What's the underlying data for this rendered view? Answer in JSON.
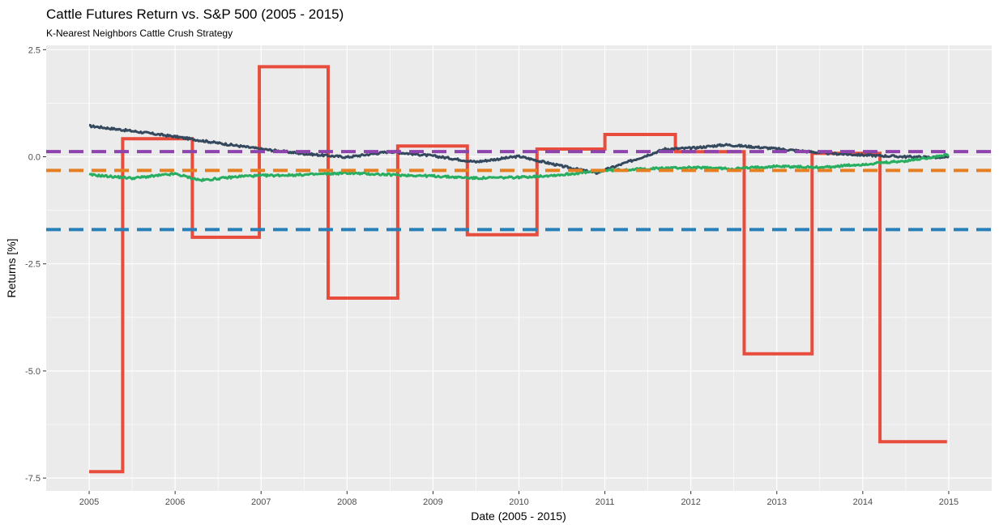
{
  "chart_data": {
    "type": "line",
    "title": "Cattle Futures Return vs. S&P 500 (2005 - 2015)",
    "subtitle": "K-Nearest Neighbors Cattle Crush Strategy",
    "xlabel": "Date (2005 - 2015)",
    "ylabel": "Returns [%]",
    "xlim": [
      2004.5,
      2015.5
    ],
    "ylim": [
      -7.8,
      2.6
    ],
    "x_ticks": [
      2005,
      2006,
      2007,
      2008,
      2009,
      2010,
      2011,
      2012,
      2013,
      2014,
      2015
    ],
    "x_tick_labels": [
      "2005",
      "2006",
      "2007",
      "2008",
      "2009",
      "2010",
      "2011",
      "2012",
      "2013",
      "2014",
      "2015"
    ],
    "y_ticks": [
      2.5,
      0.0,
      -2.5,
      -5.0,
      -7.5
    ],
    "y_tick_labels": [
      "2.5",
      "0.0",
      "-2.5",
      "-5.0",
      "-7.5"
    ],
    "grid": true,
    "legend": "none",
    "colors": {
      "panel_background": "#ebebeb",
      "grid": "#ffffff",
      "strategy": "#e74c3c",
      "dark_series": "#34495e",
      "green_series": "#27ae60",
      "purple_mean": "#8e44ad",
      "orange_mean": "#e67e22",
      "blue_mean": "#2980b9"
    },
    "series": [
      {
        "key": "strategy",
        "style": "step",
        "x": [
          2005.0,
          2005.39,
          2005.39,
          2006.2,
          2006.2,
          2006.98,
          2006.98,
          2007.78,
          2007.78,
          2008.59,
          2008.59,
          2009.4,
          2009.4,
          2010.21,
          2010.21,
          2011.0,
          2011.0,
          2011.82,
          2011.82,
          2012.62,
          2012.62,
          2013.41,
          2013.41,
          2014.2,
          2014.2,
          2014.98
        ],
        "values": [
          -7.35,
          -7.35,
          0.42,
          0.42,
          -1.88,
          -1.88,
          2.1,
          2.1,
          -3.3,
          -3.3,
          0.25,
          0.25,
          -1.82,
          -1.82,
          0.18,
          0.18,
          0.52,
          0.52,
          0.12,
          0.12,
          -4.6,
          -4.6,
          0.08,
          0.08,
          -6.65,
          -6.65
        ]
      },
      {
        "key": "dark_series",
        "style": "line",
        "x": [
          2005.0,
          2005.5,
          2006.0,
          2006.5,
          2007.0,
          2007.5,
          2008.0,
          2008.5,
          2009.0,
          2009.5,
          2010.0,
          2010.5,
          2010.9,
          2011.3,
          2011.7,
          2012.0,
          2012.4,
          2012.8,
          2013.2,
          2013.6,
          2014.0,
          2014.5,
          2015.0
        ],
        "values": [
          0.72,
          0.6,
          0.47,
          0.32,
          0.18,
          0.07,
          -0.01,
          0.12,
          0.02,
          -0.12,
          0.01,
          -0.22,
          -0.38,
          -0.1,
          0.18,
          0.2,
          0.28,
          0.22,
          0.15,
          0.08,
          0.04,
          0.0,
          -0.02
        ]
      },
      {
        "key": "green_series",
        "style": "line",
        "x": [
          2005.0,
          2005.5,
          2006.0,
          2006.3,
          2006.8,
          2007.5,
          2008.0,
          2008.5,
          2009.0,
          2009.5,
          2010.0,
          2010.5,
          2011.0,
          2011.5,
          2012.0,
          2012.5,
          2013.0,
          2013.5,
          2014.0,
          2014.5,
          2015.0
        ],
        "values": [
          -0.42,
          -0.5,
          -0.4,
          -0.55,
          -0.45,
          -0.42,
          -0.38,
          -0.42,
          -0.45,
          -0.5,
          -0.48,
          -0.42,
          -0.32,
          -0.28,
          -0.25,
          -0.28,
          -0.22,
          -0.25,
          -0.18,
          -0.1,
          0.05
        ]
      },
      {
        "key": "purple_mean",
        "style": "dashed-h",
        "values": [
          0.12
        ]
      },
      {
        "key": "orange_mean",
        "style": "dashed-h",
        "values": [
          -0.32
        ]
      },
      {
        "key": "blue_mean",
        "style": "dashed-h",
        "values": [
          -1.7
        ]
      }
    ]
  }
}
